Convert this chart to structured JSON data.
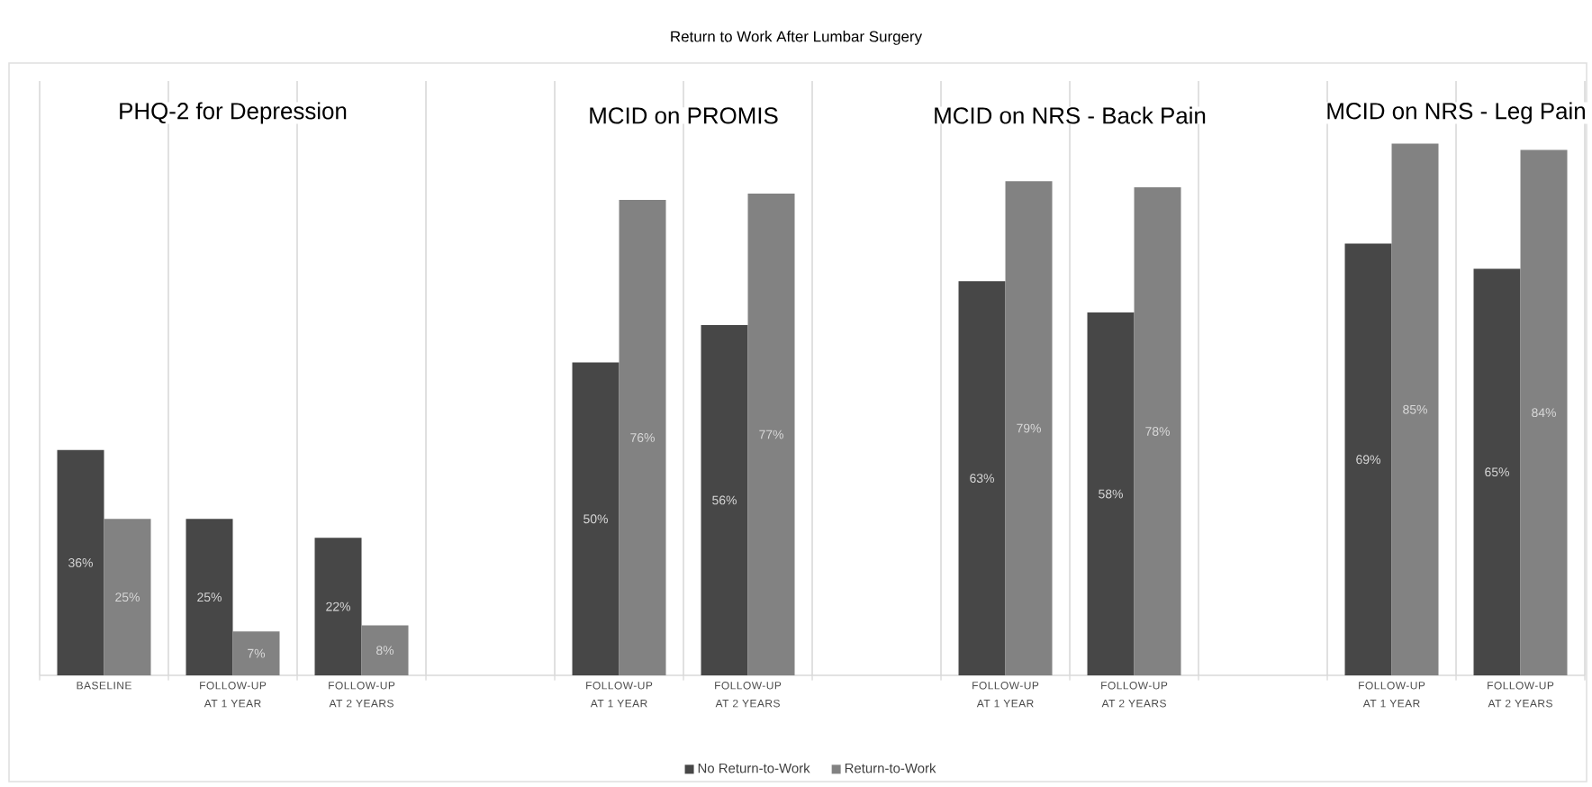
{
  "chart_data": {
    "type": "bar",
    "title": "Return to Work After Lumbar Surgery",
    "annotations": [
      "PHQ-2 for Depression",
      "MCID on PROMIS",
      "MCID on NRS - Back Pain",
      "MCID on NRS - Leg Pain"
    ],
    "categories": [
      "BASELINE",
      "FOLLOW-UP AT 1 YEAR",
      "FOLLOW-UP AT 2 YEARS",
      null,
      "FOLLOW-UP AT 1 YEAR",
      "FOLLOW-UP AT 2 YEARS",
      null,
      "FOLLOW-UP AT 1 YEAR",
      "FOLLOW-UP AT 2 YEARS",
      null,
      "FOLLOW-UP AT 1 YEAR",
      "FOLLOW-UP AT 2 YEARS"
    ],
    "series": [
      {
        "name": "No Return-to-Work",
        "color": "#474747",
        "values": [
          36,
          25,
          22,
          null,
          50,
          56,
          null,
          63,
          58,
          null,
          69,
          65
        ],
        "value_labels": [
          "36%",
          "25%",
          "22%",
          null,
          "50%",
          "56%",
          null,
          "63%",
          "58%",
          null,
          "69%",
          "65%"
        ]
      },
      {
        "name": "Return-to-Work",
        "color": "#828282",
        "values": [
          25,
          7,
          8,
          null,
          76,
          77,
          null,
          79,
          78,
          null,
          85,
          84
        ],
        "value_labels": [
          "25%",
          "7%",
          "8%",
          null,
          "76%",
          "77%",
          null,
          "79%",
          "78%",
          null,
          "85%",
          "84%"
        ]
      }
    ],
    "ylim": [
      0,
      95
    ],
    "grid": "x",
    "legend": "bottom"
  }
}
